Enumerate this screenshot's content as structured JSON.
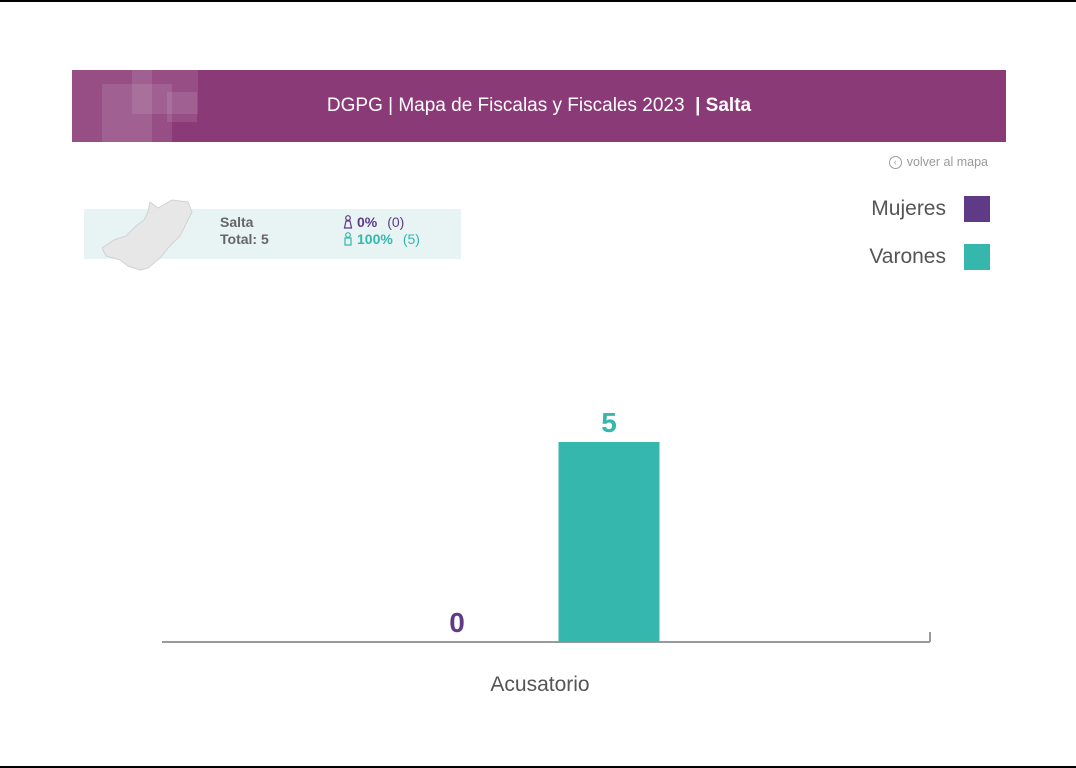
{
  "header": {
    "title": "DGPG | Mapa de Fiscalas y Fiscales 2023 ",
    "region": " | Salta"
  },
  "back_link": "volver al mapa",
  "summary": {
    "province": "Salta",
    "total_label": "Total: 5",
    "women_pct": "0%",
    "women_count": "(0)",
    "men_pct": "100%",
    "men_count": "(5)"
  },
  "legend": [
    {
      "label": "Mujeres",
      "color": "#5e3a87"
    },
    {
      "label": "Varones",
      "color": "#35b7ad"
    }
  ],
  "icons": {
    "back": "circle-arrow-left-icon",
    "women": "female-person-icon",
    "men": "male-person-icon",
    "map": "province-map-icon"
  },
  "colors": {
    "banner": "#8b3a78",
    "women": "#5e3a87",
    "men": "#35b7ad",
    "summary_bg": "#e8f3f3"
  },
  "chart_data": {
    "type": "bar",
    "categories": [
      "Acusatorio"
    ],
    "series": [
      {
        "name": "Mujeres",
        "values": [
          0
        ]
      },
      {
        "name": "Varones",
        "values": [
          5
        ]
      }
    ],
    "ylim": [
      0,
      5
    ],
    "grid": false,
    "legend_position": "top-right"
  }
}
